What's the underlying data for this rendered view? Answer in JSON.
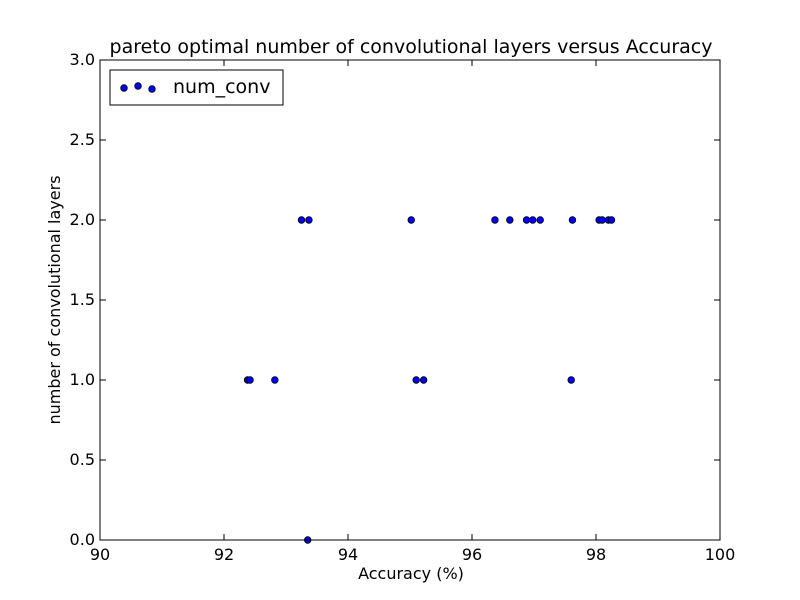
{
  "chart_data": {
    "type": "scatter",
    "title": "pareto optimal number of convolutional layers versus Accuracy",
    "xlabel": "Accuracy (%)",
    "ylabel": "number of convolutional layers",
    "xlim": [
      90,
      100
    ],
    "ylim": [
      0.0,
      3.0
    ],
    "xticks": [
      90,
      92,
      94,
      96,
      98,
      100
    ],
    "xtick_labels": [
      "90",
      "92",
      "94",
      "96",
      "98",
      "100"
    ],
    "yticks": [
      0.0,
      0.5,
      1.0,
      1.5,
      2.0,
      2.5,
      3.0
    ],
    "ytick_labels": [
      "0.0",
      "0.5",
      "1.0",
      "1.5",
      "2.0",
      "2.5",
      "3.0"
    ],
    "grid": false,
    "legend_position": "top-left",
    "series": [
      {
        "name": "num_conv",
        "color": "#0000ff",
        "edge_color": "#000000",
        "points": [
          {
            "x": 92.38,
            "y": 1
          },
          {
            "x": 92.42,
            "y": 1
          },
          {
            "x": 92.82,
            "y": 1
          },
          {
            "x": 95.1,
            "y": 1
          },
          {
            "x": 95.22,
            "y": 1
          },
          {
            "x": 97.6,
            "y": 1
          },
          {
            "x": 93.25,
            "y": 2
          },
          {
            "x": 93.37,
            "y": 2
          },
          {
            "x": 95.02,
            "y": 2
          },
          {
            "x": 96.37,
            "y": 2
          },
          {
            "x": 96.61,
            "y": 2
          },
          {
            "x": 96.88,
            "y": 2
          },
          {
            "x": 96.98,
            "y": 2
          },
          {
            "x": 97.1,
            "y": 2
          },
          {
            "x": 97.62,
            "y": 2
          },
          {
            "x": 98.05,
            "y": 2
          },
          {
            "x": 98.1,
            "y": 2
          },
          {
            "x": 98.2,
            "y": 2
          },
          {
            "x": 98.25,
            "y": 2
          },
          {
            "x": 93.35,
            "y": 0
          }
        ]
      }
    ]
  }
}
